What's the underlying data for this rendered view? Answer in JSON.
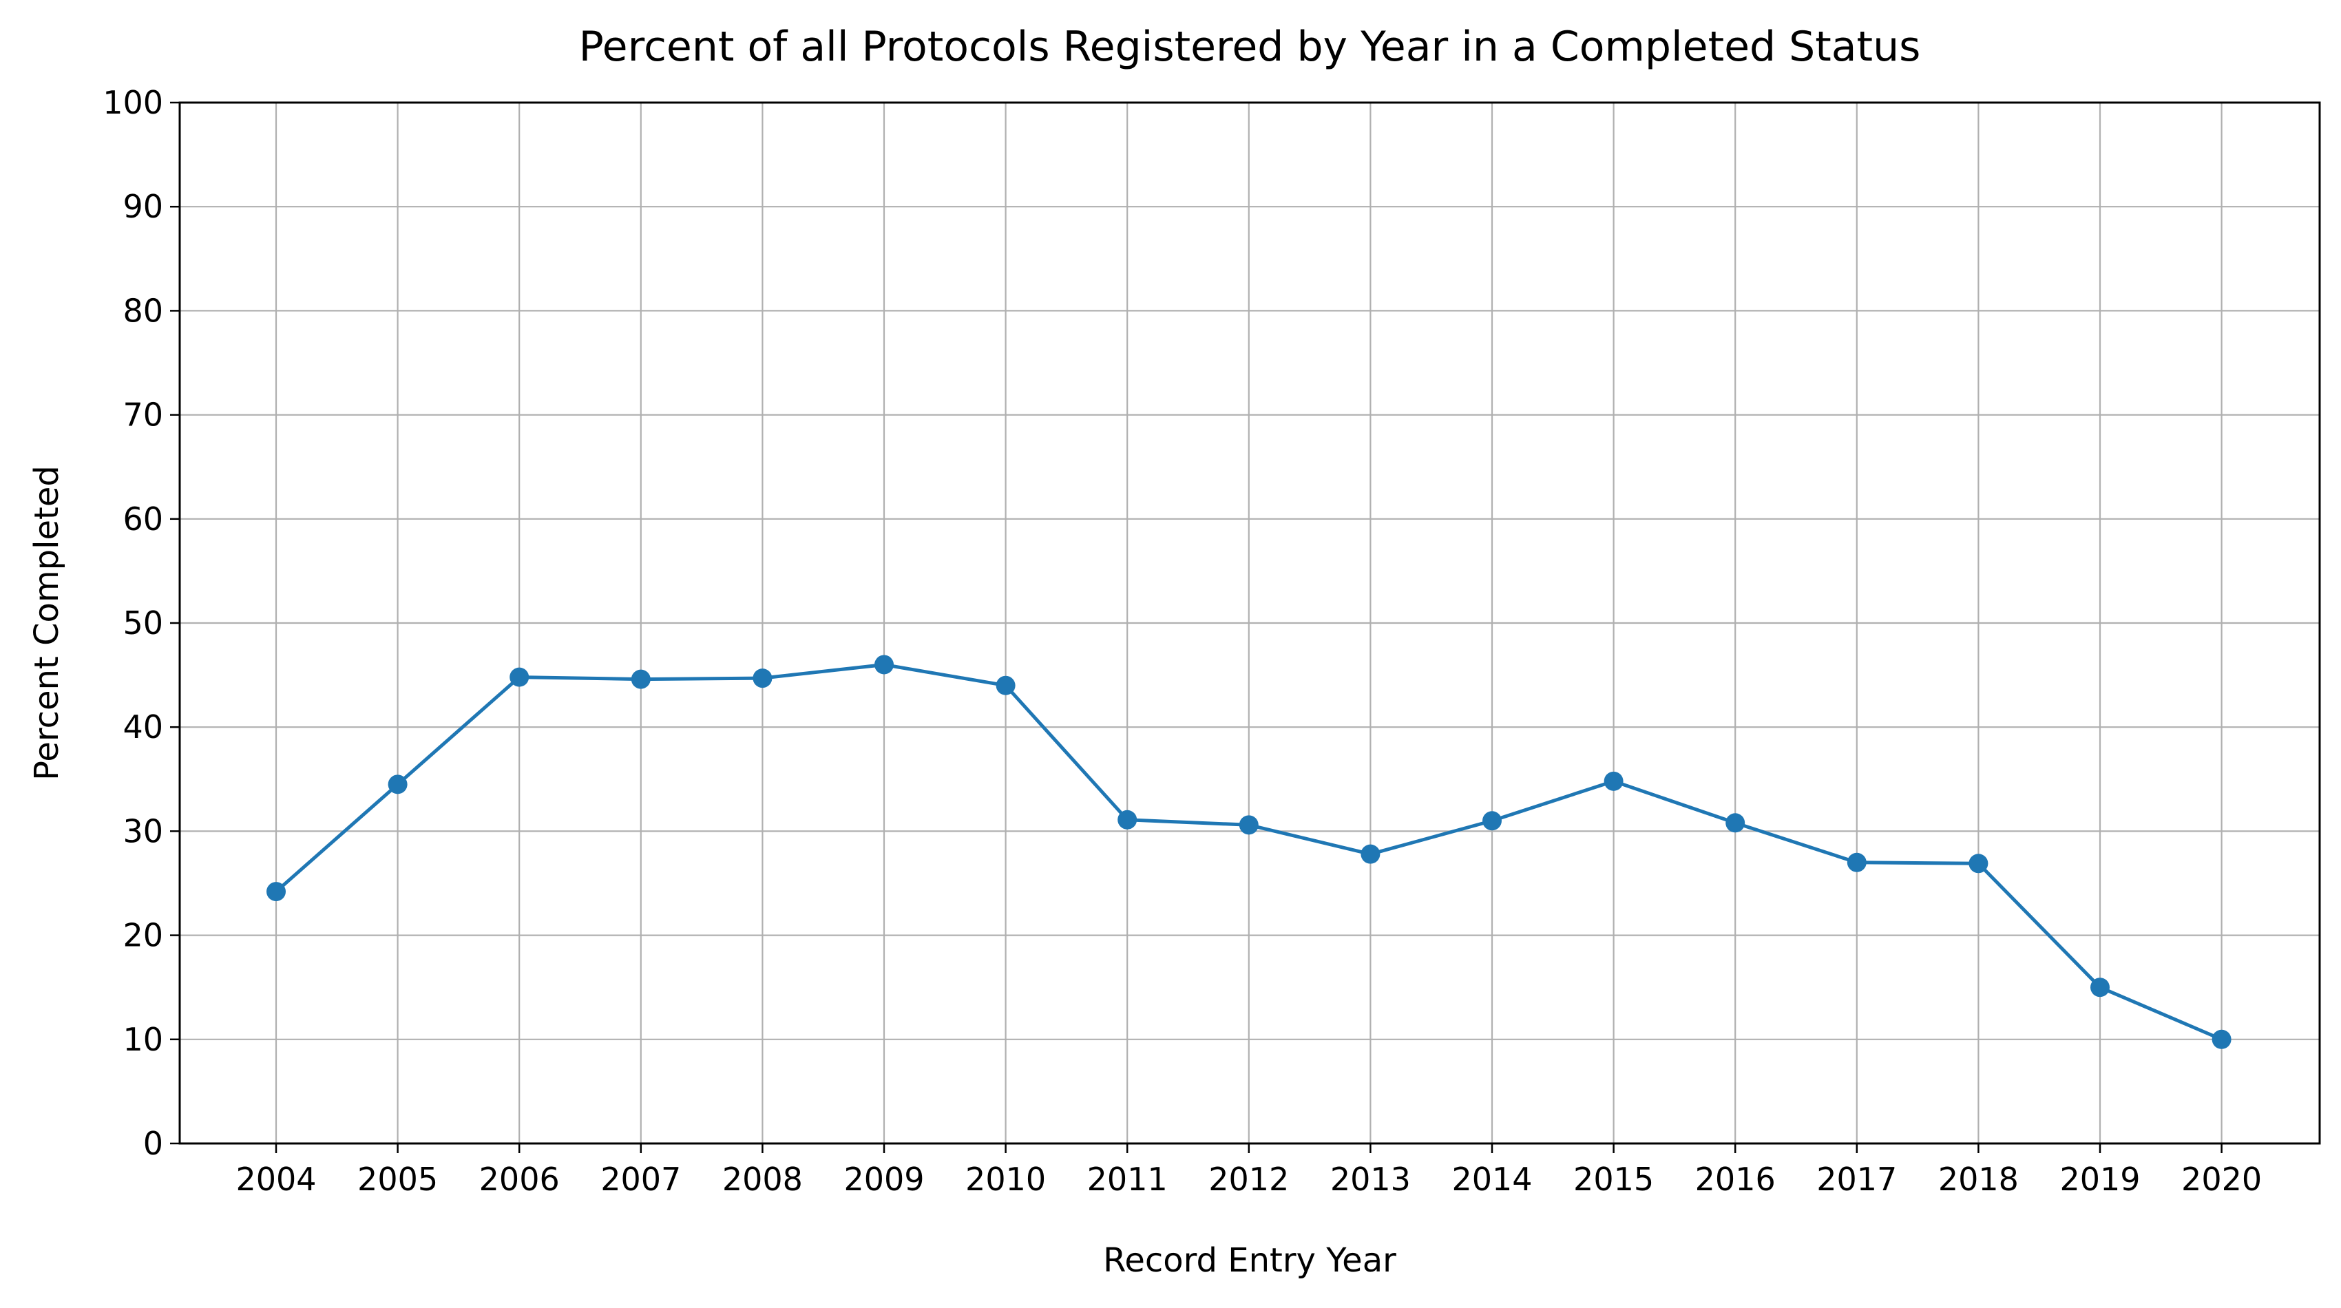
{
  "chart_data": {
    "type": "line",
    "title": "Percent of all Protocols Registered by Year in a Completed Status",
    "xlabel": "Record Entry Year",
    "ylabel": "Percent Completed",
    "categories": [
      "2004",
      "2005",
      "2006",
      "2007",
      "2008",
      "2009",
      "2010",
      "2011",
      "2012",
      "2013",
      "2014",
      "2015",
      "2016",
      "2017",
      "2018",
      "2019",
      "2020"
    ],
    "series": [
      {
        "values": [
          24.2,
          34.5,
          44.8,
          44.6,
          44.7,
          46.0,
          44.0,
          31.1,
          30.6,
          27.8,
          31.0,
          34.8,
          30.8,
          27.0,
          26.9,
          15.0,
          10.0
        ],
        "color": "#1f77b4",
        "marker": "circle"
      }
    ],
    "ylim": [
      0,
      100
    ],
    "yticks": [
      0,
      10,
      20,
      30,
      40,
      50,
      60,
      70,
      80,
      90,
      100
    ],
    "grid": true,
    "legend": false
  }
}
